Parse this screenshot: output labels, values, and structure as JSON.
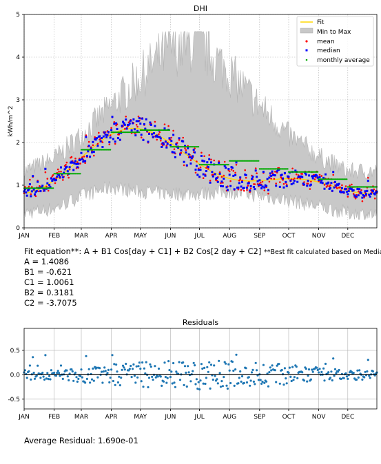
{
  "chart_data": [
    {
      "type": "line",
      "title": "DHI",
      "xlabel": "",
      "ylabel": "kWh/m^2",
      "ylim": [
        0,
        5
      ],
      "xlim": [
        1,
        365
      ],
      "yticks": [
        0,
        1,
        2,
        3,
        4,
        5
      ],
      "month_labels": [
        "JAN",
        "FEB",
        "MAR",
        "APR",
        "MAY",
        "JUN",
        "JUL",
        "AUG",
        "SEP",
        "OCT",
        "NOV",
        "DEC"
      ],
      "month_start_days": [
        1,
        32,
        60,
        91,
        121,
        152,
        182,
        213,
        244,
        274,
        305,
        335
      ],
      "grid": true,
      "legend_position": "top-right",
      "legend": [
        "Fit",
        "Min to Max",
        "mean",
        "median",
        "monthly average"
      ],
      "colors": {
        "fit": "#ffd700",
        "band": "#c8c8c8",
        "mean": "#ff0000",
        "median": "#0000ff",
        "monthly_average": "#00aa00"
      },
      "monthly_average": [
        0.93,
        1.27,
        1.83,
        2.24,
        2.29,
        1.9,
        1.48,
        1.57,
        1.38,
        1.31,
        1.14,
        0.96,
        0.82
      ],
      "min_to_max_envelope": {
        "days": [
          1,
          32,
          60,
          91,
          121,
          152,
          182,
          213,
          244,
          274,
          305,
          335,
          365
        ],
        "min": [
          0.35,
          0.45,
          0.75,
          0.95,
          0.85,
          0.8,
          0.8,
          0.85,
          0.75,
          0.65,
          0.5,
          0.35,
          0.3
        ],
        "max": [
          1.35,
          1.65,
          2.2,
          2.9,
          3.6,
          4.3,
          4.4,
          3.7,
          2.9,
          2.2,
          1.7,
          1.35,
          1.35
        ]
      }
    },
    {
      "type": "scatter",
      "title": "Residuals",
      "xlabel": "",
      "ylabel": "",
      "ylim": [
        -0.7,
        0.95
      ],
      "xlim": [
        1,
        365
      ],
      "yticks": [
        -0.5,
        0.0,
        0.5
      ],
      "grid": true,
      "reference_line": 0.0,
      "point_color": "#1f77b4"
    }
  ],
  "fit": {
    "equation_label": "Fit equation**: A + B1 Cos[day + C1] + B2 Cos[2 day + C2]",
    "note": "**Best fit calculated based on Median",
    "A": 1.4086,
    "B1": -0.621,
    "C1": 1.0061,
    "B2": 0.3181,
    "C2": -3.7075,
    "lines": [
      "A = 1.4086",
      "B1 = -0.621",
      "C1 = 1.0061",
      "B2 = 0.3181",
      "C2 = -3.7075"
    ]
  },
  "summary": "Average Residual: 1.690e-01"
}
